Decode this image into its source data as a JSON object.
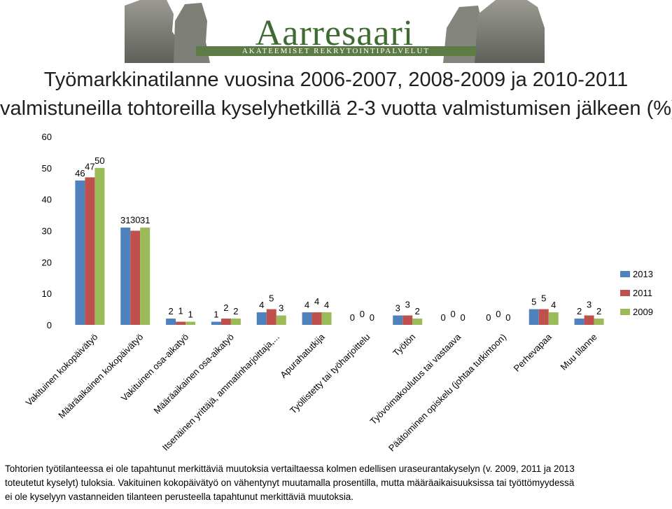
{
  "logo": {
    "name": "Aarresaari",
    "tagline": "AKATEEMISET REKRYTOINTIPALVELUT"
  },
  "title": {
    "line1": "Työmarkkinatilanne vuosina 2006-2007, 2008-2009 ja 2010-2011",
    "line2": "valmistuneilla tohtoreilla kyselyhetkillä 2-3 vuotta valmistumisen jälkeen (%)"
  },
  "chart_data": {
    "type": "bar",
    "title": "",
    "xlabel": "",
    "ylabel": "",
    "ylim": [
      0,
      60
    ],
    "yticks": [
      "0",
      "10",
      "20",
      "30",
      "40",
      "50",
      "60"
    ],
    "legend_position": "right",
    "grid": false,
    "categories": [
      "Vakituinen kokopäivätyö",
      "Määräaikainen kokopäivätyö",
      "Vakituinen osa-aikatyö",
      "Määräaikainen osa-aikatyö",
      "Itsenäinen yrittäjä, ammatinharjoittaja,...",
      "Apurahatutkija",
      "Työllistetty tai työharjoittelu",
      "Työtön",
      "Työvoimakoulutus tai vastaava",
      "Päätoiminen opiskelu (johtaa tutkintoon)",
      "Perhevapaa",
      "Muu tilanne"
    ],
    "series": [
      {
        "name": "2013",
        "color": "#4f81bd",
        "values": [
          46,
          31,
          2,
          1,
          4,
          4,
          0,
          3,
          0,
          0,
          5,
          2
        ]
      },
      {
        "name": "2011",
        "color": "#c0504d",
        "values": [
          47,
          30,
          1,
          2,
          5,
          4,
          0,
          3,
          0,
          0,
          5,
          3
        ]
      },
      {
        "name": "2009",
        "color": "#9bbb59",
        "values": [
          50,
          31,
          1,
          2,
          3,
          4,
          0,
          2,
          0,
          0,
          4,
          2
        ]
      }
    ]
  },
  "footnote": {
    "line1": "Tohtorien työtilanteessa ei ole tapahtunut merkittäviä muutoksia vertailtaessa kolmen edellisen uraseurantakyselyn (v. 2009, 2011 ja 2013",
    "line2": "toteutetut kyselyt) tuloksia. Vakituinen kokopäivätyö on vähentynyt muutamalla prosentilla, mutta määräaikaisuuksissa tai työttömyydessä",
    "line3": "ei ole kyselyyn vastanneiden tilanteen perusteella tapahtunut merkittäviä muutoksia."
  }
}
